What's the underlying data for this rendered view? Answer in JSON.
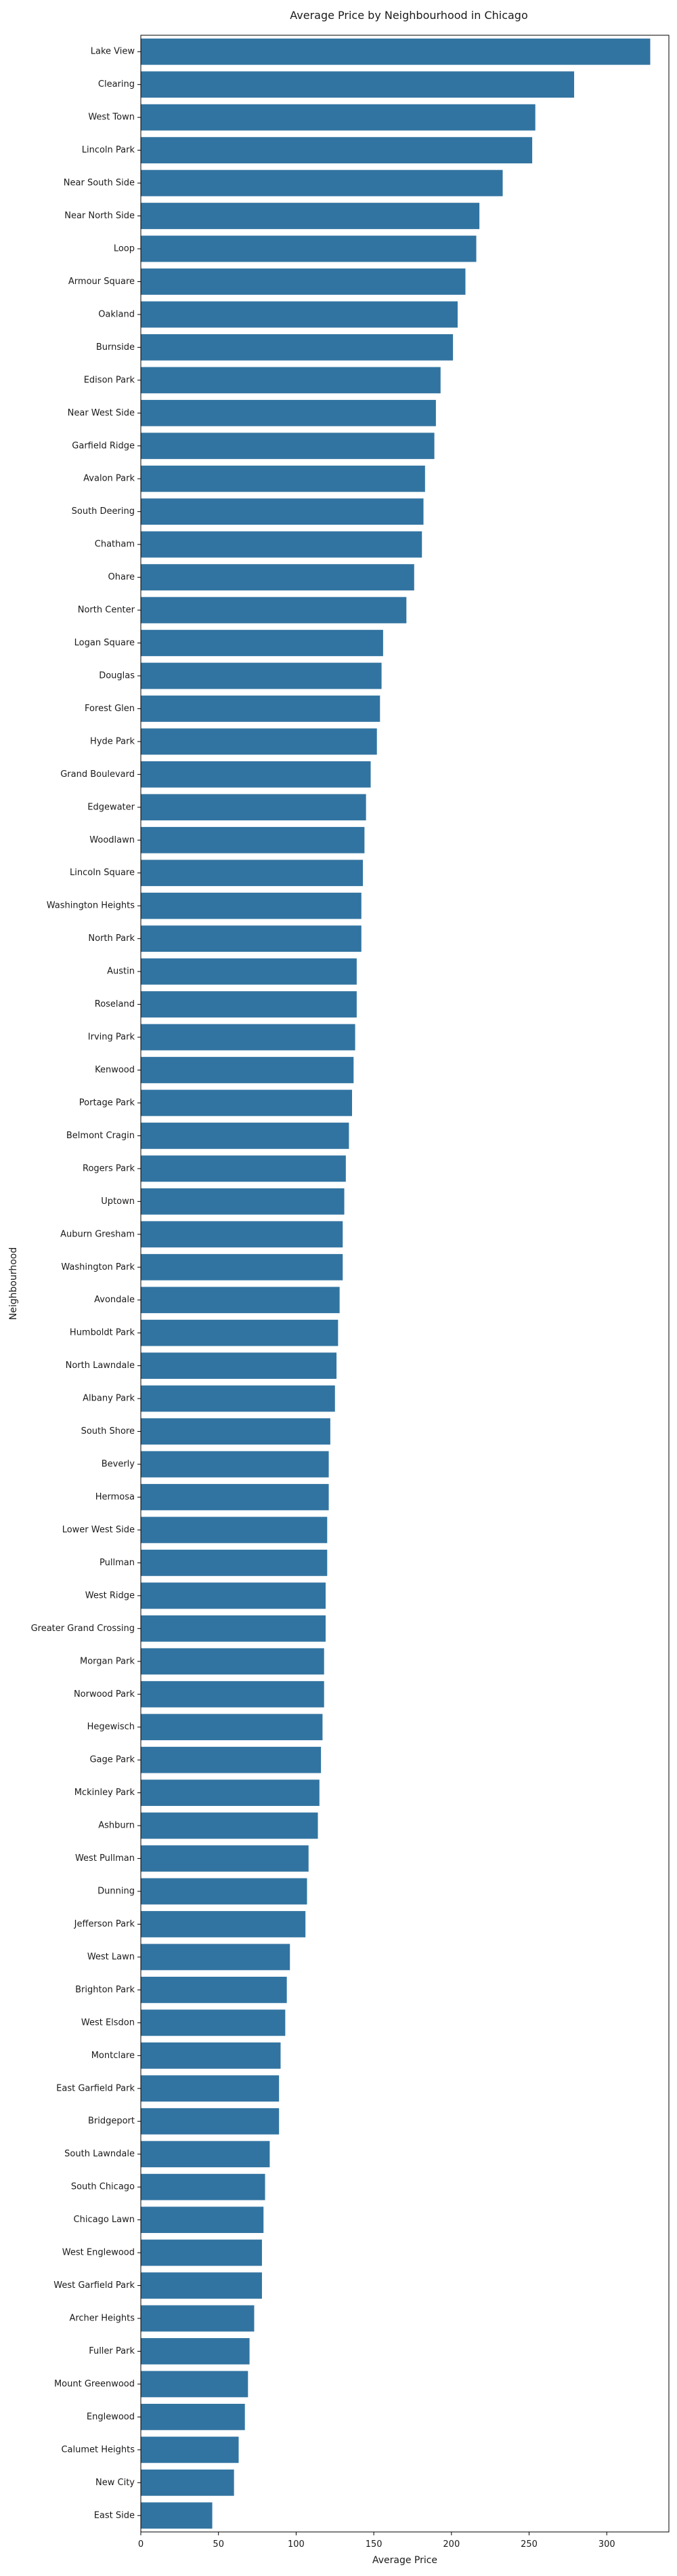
{
  "chart_data": {
    "type": "bar",
    "orientation": "horizontal",
    "title": "Average Price by Neighbourhood in Chicago",
    "xlabel": "Average Price",
    "ylabel": "Neighbourhood",
    "xlim": [
      0,
      340
    ],
    "xticks": [
      0,
      50,
      100,
      150,
      200,
      250,
      300
    ],
    "bar_color": "#3274a1",
    "grid": false,
    "categories": [
      "Lake View",
      "Clearing",
      "West Town",
      "Lincoln Park",
      "Near South Side",
      "Near North Side",
      "Loop",
      "Armour Square",
      "Oakland",
      "Burnside",
      "Edison Park",
      "Near West Side",
      "Garfield Ridge",
      "Avalon Park",
      "South Deering",
      "Chatham",
      "Ohare",
      "North Center",
      "Logan Square",
      "Douglas",
      "Forest Glen",
      "Hyde Park",
      "Grand Boulevard",
      "Edgewater",
      "Woodlawn",
      "Lincoln Square",
      "Washington Heights",
      "North Park",
      "Austin",
      "Roseland",
      "Irving Park",
      "Kenwood",
      "Portage Park",
      "Belmont Cragin",
      "Rogers Park",
      "Uptown",
      "Auburn Gresham",
      "Washington Park",
      "Avondale",
      "Humboldt Park",
      "North Lawndale",
      "Albany Park",
      "South Shore",
      "Beverly",
      "Hermosa",
      "Lower West Side",
      "Pullman",
      "West Ridge",
      "Greater Grand Crossing",
      "Morgan Park",
      "Norwood Park",
      "Hegewisch",
      "Gage Park",
      "Mckinley Park",
      "Ashburn",
      "West Pullman",
      "Dunning",
      "Jefferson Park",
      "West Lawn",
      "Brighton Park",
      "West Elsdon",
      "Montclare",
      "East Garfield Park",
      "Bridgeport",
      "South Lawndale",
      "South Chicago",
      "Chicago Lawn",
      "West Englewood",
      "West Garfield Park",
      "Archer Heights",
      "Fuller Park",
      "Mount Greenwood",
      "Englewood",
      "Calumet Heights",
      "New City",
      "East Side"
    ],
    "values": [
      328,
      279,
      254,
      252,
      233,
      218,
      216,
      209,
      204,
      201,
      193,
      190,
      189,
      183,
      182,
      181,
      176,
      171,
      156,
      155,
      154,
      152,
      148,
      145,
      144,
      143,
      142,
      142,
      139,
      139,
      138,
      137,
      136,
      134,
      132,
      131,
      130,
      130,
      128,
      127,
      126,
      125,
      122,
      121,
      121,
      120,
      120,
      119,
      119,
      118,
      118,
      117,
      116,
      115,
      114,
      108,
      107,
      106,
      96,
      94,
      93,
      90,
      89,
      89,
      83,
      80,
      79,
      78,
      78,
      73,
      70,
      69,
      67,
      63,
      60,
      46
    ]
  }
}
